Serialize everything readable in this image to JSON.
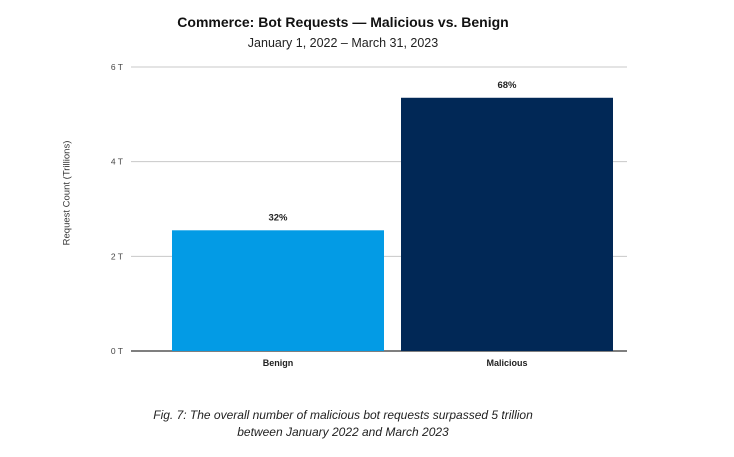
{
  "chart_data": {
    "type": "bar",
    "title": "Commerce: Bot Requests — Malicious vs. Benign",
    "subtitle": "January 1, 2022 – March 31, 2023",
    "xlabel": "",
    "ylabel": "Request Count (Trillions)",
    "categories": [
      "Benign",
      "Malicious"
    ],
    "values": [
      2.55,
      5.35
    ],
    "data_labels": [
      "32%",
      "68%"
    ],
    "colors": [
      "#039be5",
      "#012856"
    ],
    "ylim": [
      0,
      6
    ],
    "yticks": [
      0,
      2,
      4,
      6
    ],
    "ytick_labels": [
      "0 T",
      "2 T",
      "4 T",
      "6 T"
    ],
    "grid": true,
    "legend": "none"
  },
  "caption": {
    "line1": "Fig. 7: The overall number of malicious bot requests surpassed 5 trillion",
    "line2": "between January 2022 and March 2023"
  }
}
